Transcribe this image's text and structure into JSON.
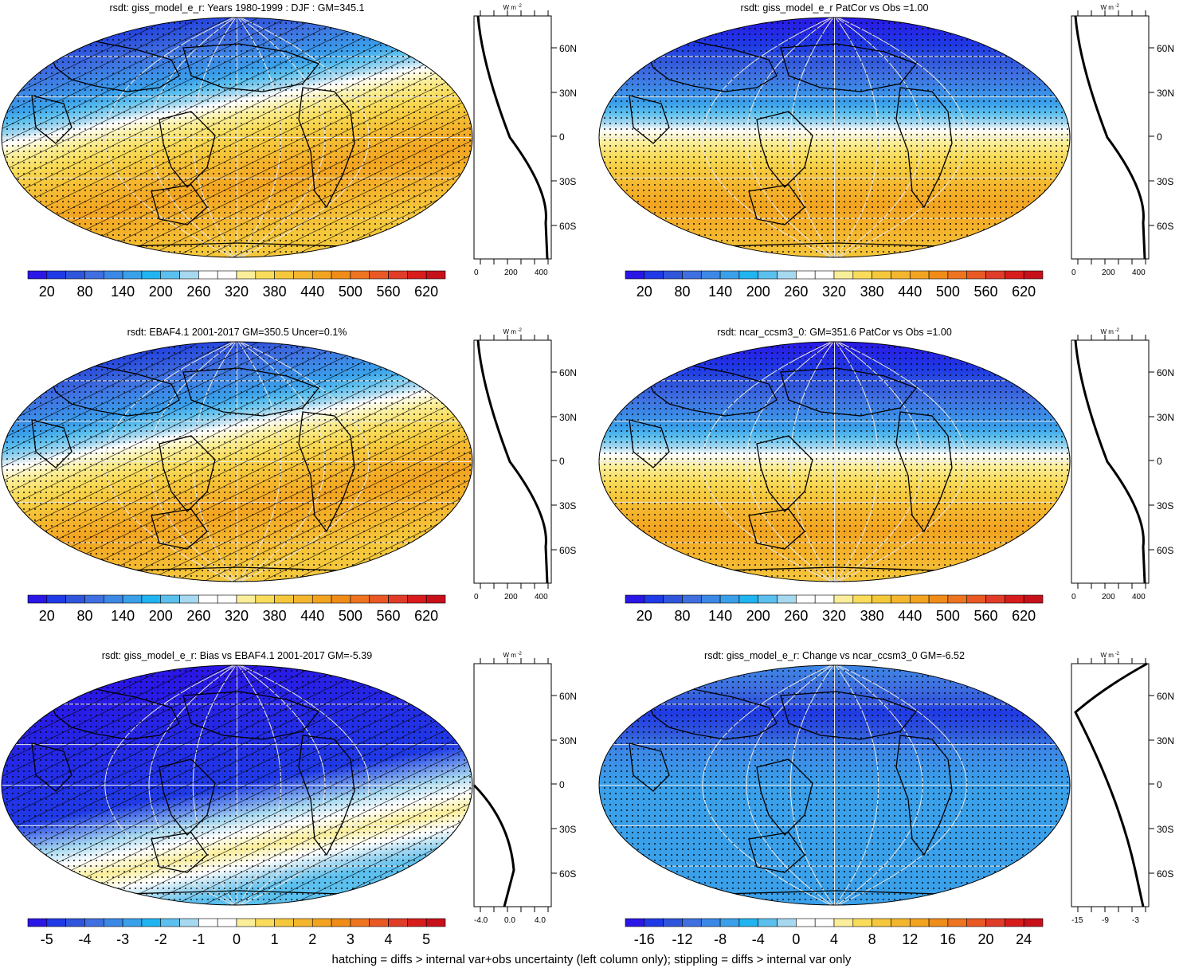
{
  "footer": "hatching = diffs > internal var+obs uncertainty (left column only); stippling = diffs > internal var only",
  "units_label": "W m",
  "units_exp": "-2",
  "colors": {
    "full": [
      "#2a16e6",
      "#1f3ae6",
      "#2f55dc",
      "#3f6fe0",
      "#3c88e6",
      "#3aa0ea",
      "#20b4f0",
      "#5cc0ee",
      "#a6d8f0",
      "#ffffff",
      "#ffffff",
      "#faee9a",
      "#f8dc5a",
      "#f5c83c",
      "#f4b62e",
      "#f2a420",
      "#f08c18",
      "#ee7420",
      "#ea5824",
      "#e03c28",
      "#d81c1c",
      "#c8101a"
    ],
    "bias": [
      "#2a16e6",
      "#1f3ae6",
      "#2f55dc",
      "#3f6fe0",
      "#3c88e6",
      "#3aa0ea",
      "#20b4f0",
      "#5cc0ee",
      "#a6d8f0",
      "#ffffff",
      "#ffffff",
      "#faee9a",
      "#f8dc5a",
      "#f5c83c",
      "#f4b62e",
      "#f2a420",
      "#f08c18",
      "#ee7420",
      "#ea5824",
      "#e03c28",
      "#d81c1c",
      "#c8101a"
    ]
  },
  "panels": [
    {
      "title": "rsdt: giss_model_e_r: Years 1980-1999 : DJF : GM=345.1",
      "colorbar_labels": [
        "20",
        "80",
        "140",
        "200",
        "260",
        "320",
        "380",
        "440",
        "500",
        "560",
        "620"
      ],
      "profile_ticks": [
        "0",
        "200",
        "400"
      ],
      "lat_labels": [
        "60N",
        "30N",
        "0",
        "30S",
        "60S"
      ],
      "hatched": true,
      "stippled": true
    },
    {
      "title": "rsdt: giss_model_e_r PatCor vs Obs =1.00",
      "colorbar_labels": [
        "20",
        "80",
        "140",
        "200",
        "260",
        "320",
        "380",
        "440",
        "500",
        "560",
        "620"
      ],
      "profile_ticks": [
        "0",
        "200",
        "400"
      ],
      "lat_labels": [
        "60N",
        "30N",
        "0",
        "30S",
        "60S"
      ],
      "hatched": false,
      "stippled": true
    },
    {
      "title": "rsdt: EBAF4.1 2001-2017 GM=350.5 Uncer=0.1%",
      "colorbar_labels": [
        "20",
        "80",
        "140",
        "200",
        "260",
        "320",
        "380",
        "440",
        "500",
        "560",
        "620"
      ],
      "profile_ticks": [
        "0",
        "200",
        "400"
      ],
      "lat_labels": [
        "60N",
        "30N",
        "0",
        "30S",
        "60S"
      ],
      "hatched": true,
      "stippled": true
    },
    {
      "title": "rsdt: ncar_ccsm3_0: GM=351.6 PatCor vs Obs =1.00",
      "colorbar_labels": [
        "20",
        "80",
        "140",
        "200",
        "260",
        "320",
        "380",
        "440",
        "500",
        "560",
        "620"
      ],
      "profile_ticks": [
        "0",
        "200",
        "400"
      ],
      "lat_labels": [
        "60N",
        "30N",
        "0",
        "30S",
        "60S"
      ],
      "hatched": false,
      "stippled": true
    },
    {
      "title": "rsdt: giss_model_e_r: Bias vs EBAF4.1 2001-2017 GM=-5.39",
      "colorbar_labels": [
        "-5",
        "-4",
        "-3",
        "-2",
        "-1",
        "0",
        "1",
        "2",
        "3",
        "4",
        "5"
      ],
      "profile_ticks": [
        "-4.0",
        "0.0",
        "4.0"
      ],
      "lat_labels": [
        "60N",
        "30N",
        "0",
        "30S",
        "60S"
      ],
      "hatched": true,
      "stippled": true
    },
    {
      "title": "rsdt: giss_model_e_r: Change vs ncar_ccsm3_0 GM=-6.52",
      "colorbar_labels": [
        "-16",
        "-12",
        "-8",
        "-4",
        "0",
        "4",
        "8",
        "12",
        "16",
        "20",
        "24"
      ],
      "profile_ticks": [
        "-15",
        "-9",
        "-3"
      ],
      "lat_labels": [
        "60N",
        "30N",
        "0",
        "30S",
        "60S"
      ],
      "hatched": false,
      "stippled": true
    }
  ]
}
